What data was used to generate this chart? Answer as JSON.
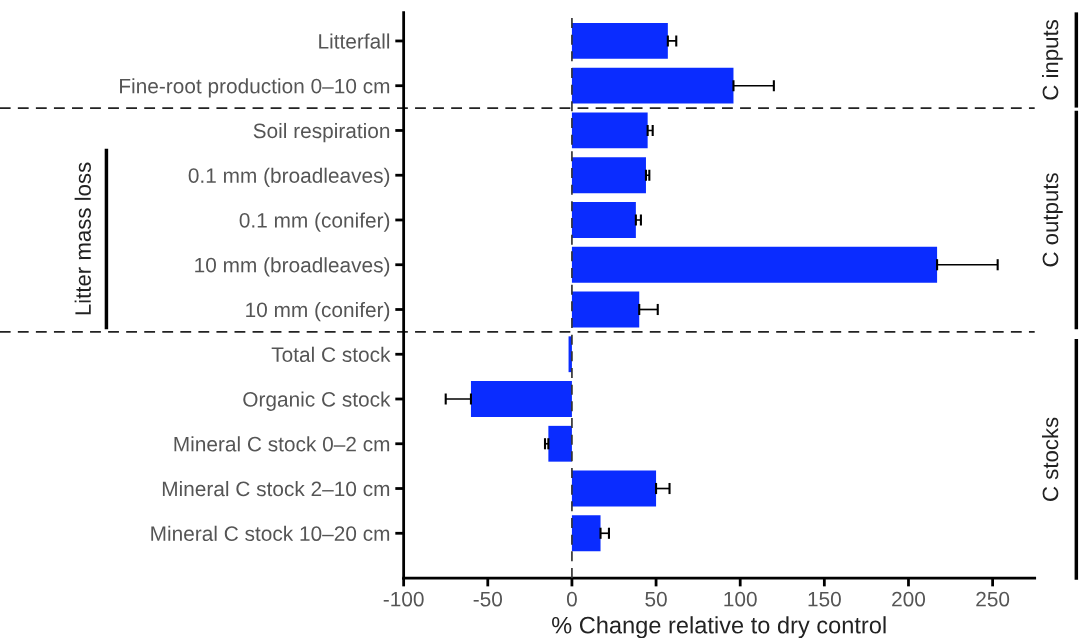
{
  "chart_data": {
    "type": "bar",
    "orientation": "horizontal",
    "xlabel": "% Change relative to dry control",
    "categories": [
      "Litterfall",
      "Fine-root production 0–10 cm",
      "Soil respiration",
      "0.1 mm (broadleaves)",
      "0.1 mm (conifer)",
      "10 mm (broadleaves)",
      "10 mm (conifer)",
      "Total C stock",
      "Organic C stock",
      "Mineral C stock 0–2 cm",
      "Mineral C stock 2–10 cm",
      "Mineral C stock 10–20 cm"
    ],
    "values": [
      57,
      96,
      45,
      44,
      38,
      217,
      40,
      -2,
      -60,
      -14,
      50,
      17
    ],
    "errors": [
      [
        57,
        62
      ],
      [
        96,
        120
      ],
      [
        45,
        48
      ],
      [
        44,
        46
      ],
      [
        38,
        41
      ],
      [
        217,
        253
      ],
      [
        40,
        51
      ],
      null,
      [
        -75,
        -60
      ],
      [
        -16,
        -14
      ],
      [
        50,
        58
      ],
      [
        17,
        22
      ]
    ],
    "color": "#0a2cff",
    "xlim": [
      -100,
      275
    ],
    "xticks": [
      -100,
      -50,
      0,
      50,
      100,
      150,
      200,
      250
    ],
    "ref_lines": [
      {
        "axis": "x",
        "value": 0,
        "line_style": "dashed"
      }
    ],
    "annotations": [
      "C inputs",
      "C outputs",
      "C stocks",
      "Litter mass loss"
    ],
    "grid": false,
    "legend": false
  }
}
